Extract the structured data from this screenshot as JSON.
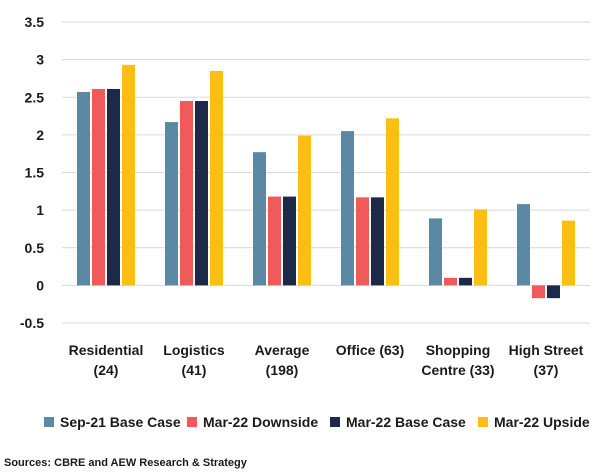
{
  "chart_data": {
    "type": "bar",
    "categories": [
      [
        "Residential",
        "(24)"
      ],
      [
        "Logistics",
        "(41)"
      ],
      [
        "Average",
        "(198)"
      ],
      [
        "Office (63)"
      ],
      [
        "Shopping",
        "Centre (33)"
      ],
      [
        "High Street",
        "(37)"
      ]
    ],
    "series": [
      {
        "name": "Sep-21 Base Case",
        "color": "#5b88a3",
        "values": [
          2.57,
          2.17,
          1.77,
          2.05,
          0.89,
          1.08
        ]
      },
      {
        "name": "Mar-22 Downside",
        "color": "#f05a5a",
        "values": [
          2.61,
          2.45,
          1.18,
          1.17,
          0.1,
          -0.17
        ]
      },
      {
        "name": "Mar-22 Base Case",
        "color": "#1c2a4a",
        "values": [
          2.61,
          2.45,
          1.18,
          1.17,
          0.1,
          -0.17
        ]
      },
      {
        "name": "Mar-22 Upside",
        "color": "#fdbe13",
        "values": [
          2.93,
          2.85,
          1.99,
          2.22,
          1.01,
          0.86
        ]
      }
    ],
    "yticks": [
      "3.5",
      "3",
      "2.5",
      "2",
      "1.5",
      "1",
      "0.5",
      "0",
      "-0.5"
    ],
    "ylim": [
      -0.5,
      3.5
    ],
    "grid": true,
    "legend_position": "bottom",
    "xlabel": "",
    "ylabel": ""
  },
  "source_note": "Sources: CBRE and AEW Research & Strategy"
}
